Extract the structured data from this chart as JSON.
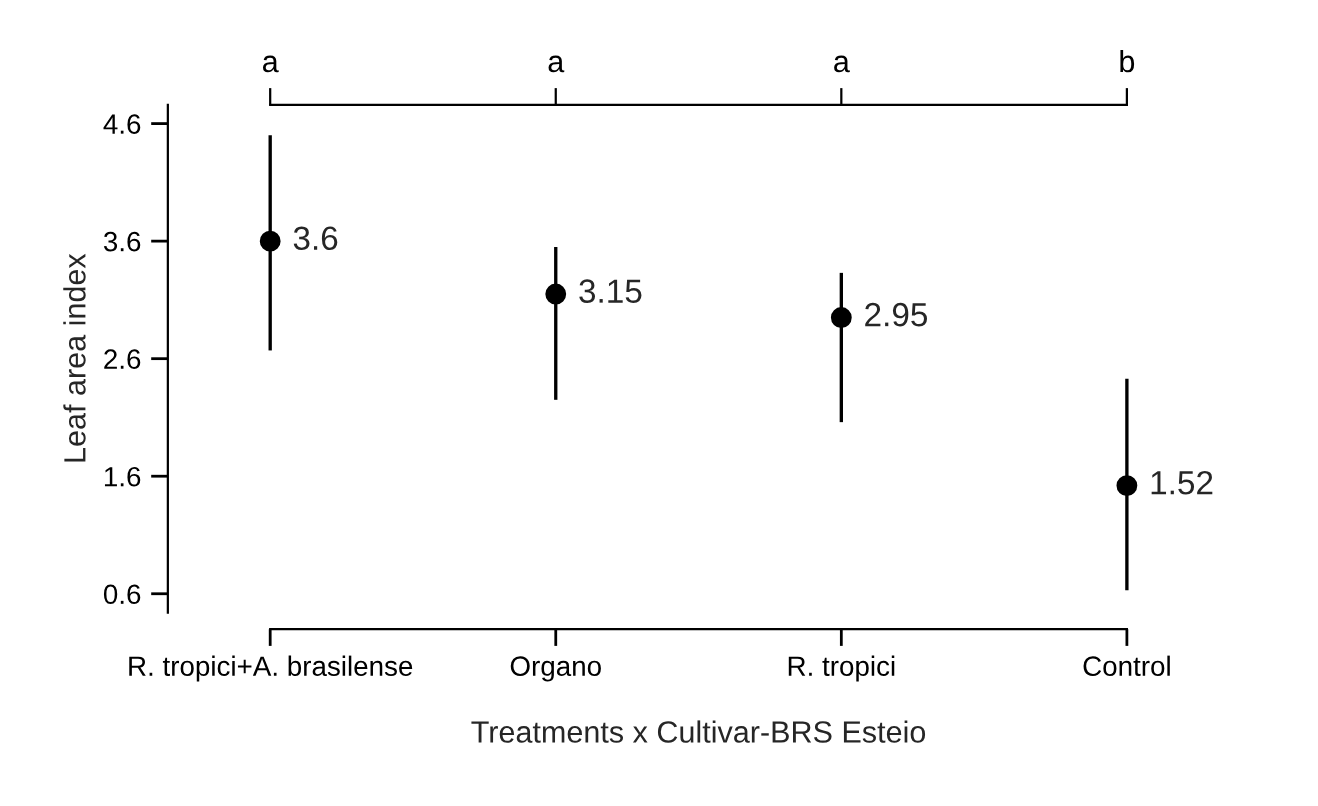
{
  "chart_data": {
    "type": "scatter",
    "xlabel": "Treatments x Cultivar-BRS Esteio",
    "ylabel": "Leaf area index",
    "categories": [
      "R. tropici+A. brasilense",
      "Organo",
      "R. tropici",
      "Control"
    ],
    "values": [
      3.6,
      3.15,
      2.95,
      1.52
    ],
    "errors": [
      [
        2.67,
        4.5
      ],
      [
        2.25,
        3.55
      ],
      [
        2.06,
        3.33
      ],
      [
        0.63,
        2.43
      ]
    ],
    "color": "#000000",
    "marker": "circle",
    "data_labels": true,
    "ylim": [
      0.44,
      4.76
    ],
    "yticks": [
      0.6,
      1.6,
      2.6,
      3.6,
      4.6
    ],
    "annotations": [
      {
        "text": "a",
        "x": "R. tropici+A. brasilense"
      },
      {
        "text": "a",
        "x": "Organo"
      },
      {
        "text": "a",
        "x": "R. tropici"
      },
      {
        "text": "b",
        "x": "Control"
      }
    ],
    "grid": false,
    "legend": false
  }
}
